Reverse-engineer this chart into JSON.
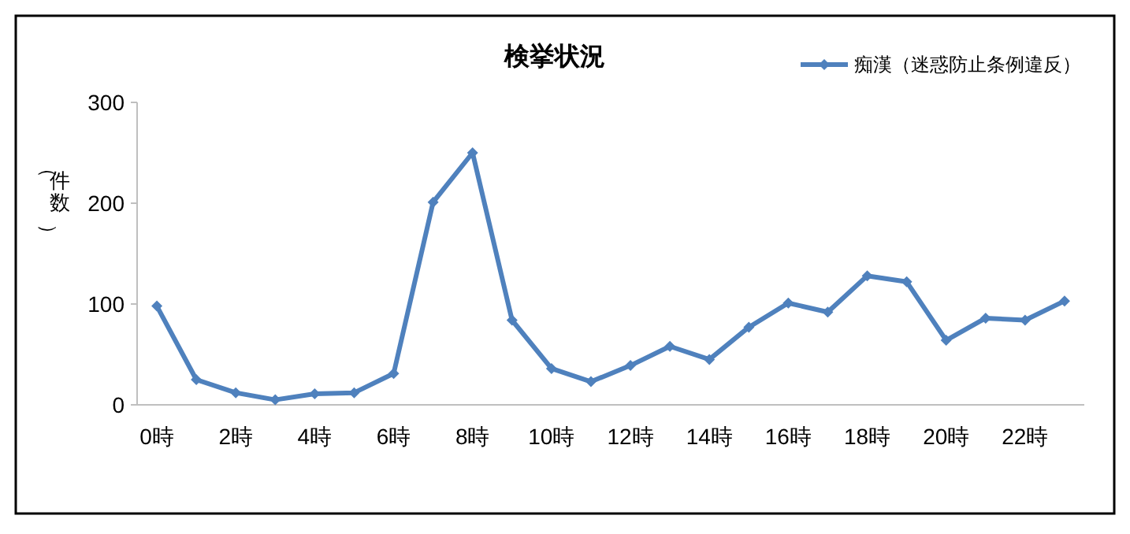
{
  "chart_data": {
    "type": "line",
    "title": "検挙状況",
    "ylabel": "（件数）",
    "categories": [
      "0時",
      null,
      "2時",
      null,
      "4時",
      null,
      "6時",
      null,
      "8時",
      null,
      "10時",
      null,
      "12時",
      null,
      "14時",
      null,
      "16時",
      null,
      "18時",
      null,
      "20時",
      null,
      "22時",
      null
    ],
    "series": [
      {
        "name": "痴漢（迷惑防止条例違反）",
        "color": "#4f81bd",
        "values": [
          98,
          25,
          12,
          5,
          11,
          12,
          31,
          201,
          250,
          84,
          36,
          23,
          39,
          58,
          45,
          77,
          101,
          92,
          128,
          122,
          64,
          86,
          84,
          103
        ]
      }
    ],
    "ylim": [
      0,
      300
    ],
    "yticks": [
      0,
      100,
      200,
      300
    ],
    "grid": false,
    "legend": "top right",
    "marker": "diamond",
    "line_style": "solid"
  }
}
